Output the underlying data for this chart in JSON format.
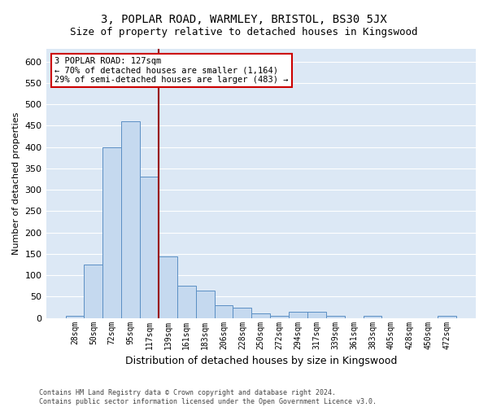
{
  "title": "3, POPLAR ROAD, WARMLEY, BRISTOL, BS30 5JX",
  "subtitle": "Size of property relative to detached houses in Kingswood",
  "xlabel": "Distribution of detached houses by size in Kingswood",
  "ylabel": "Number of detached properties",
  "bin_labels": [
    "28sqm",
    "50sqm",
    "72sqm",
    "95sqm",
    "117sqm",
    "139sqm",
    "161sqm",
    "183sqm",
    "206sqm",
    "228sqm",
    "250sqm",
    "272sqm",
    "294sqm",
    "317sqm",
    "339sqm",
    "361sqm",
    "383sqm",
    "405sqm",
    "428sqm",
    "450sqm",
    "472sqm"
  ],
  "bar_values": [
    5,
    125,
    400,
    460,
    330,
    145,
    75,
    65,
    30,
    25,
    10,
    5,
    15,
    15,
    5,
    0,
    5,
    0,
    0,
    0,
    5
  ],
  "bar_color": "#c5d9ef",
  "bar_edge_color": "#5b8fc4",
  "ylim": [
    0,
    630
  ],
  "yticks": [
    0,
    50,
    100,
    150,
    200,
    250,
    300,
    350,
    400,
    450,
    500,
    550,
    600
  ],
  "vline_x_index": 4.5,
  "vline_color": "#990000",
  "annotation_text": "3 POPLAR ROAD: 127sqm\n← 70% of detached houses are smaller (1,164)\n29% of semi-detached houses are larger (483) →",
  "annotation_box_facecolor": "#ffffff",
  "annotation_box_edgecolor": "#cc0000",
  "footer_text": "Contains HM Land Registry data © Crown copyright and database right 2024.\nContains public sector information licensed under the Open Government Licence v3.0.",
  "fig_bg_color": "#ffffff",
  "plot_bg_color": "#dce8f5",
  "grid_color": "#ffffff",
  "title_fontsize": 10,
  "subtitle_fontsize": 9,
  "ylabel_fontsize": 8,
  "xlabel_fontsize": 9,
  "ytick_fontsize": 8,
  "xtick_fontsize": 7
}
